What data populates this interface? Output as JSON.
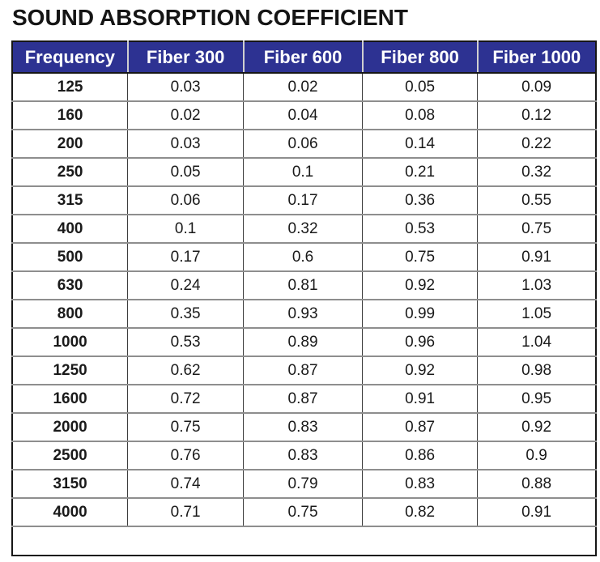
{
  "page_title": "SOUND ABSORPTION COEFFICIENT",
  "colors": {
    "header_bg": "#2d3292",
    "header_text": "#ffffff",
    "title_text": "#151515",
    "outer_border": "#161616",
    "grid_row_line": "#8e8e8e",
    "grid_col_line": "#3d3d3d"
  },
  "chart_data": {
    "type": "table",
    "title": "SOUND ABSORPTION COEFFICIENT",
    "columns": [
      "Frequency",
      "Fiber 300",
      "Fiber 600",
      "Fiber 800",
      "Fiber 1000"
    ],
    "rows": [
      [
        "125",
        "0.03",
        "0.02",
        "0.05",
        "0.09"
      ],
      [
        "160",
        "0.02",
        "0.04",
        "0.08",
        "0.12"
      ],
      [
        "200",
        "0.03",
        "0.06",
        "0.14",
        "0.22"
      ],
      [
        "250",
        "0.05",
        "0.1",
        "0.21",
        "0.32"
      ],
      [
        "315",
        "0.06",
        "0.17",
        "0.36",
        "0.55"
      ],
      [
        "400",
        "0.1",
        "0.32",
        "0.53",
        "0.75"
      ],
      [
        "500",
        "0.17",
        "0.6",
        "0.75",
        "0.91"
      ],
      [
        "630",
        "0.24",
        "0.81",
        "0.92",
        "1.03"
      ],
      [
        "800",
        "0.35",
        "0.93",
        "0.99",
        "1.05"
      ],
      [
        "1000",
        "0.53",
        "0.89",
        "0.96",
        "1.04"
      ],
      [
        "1250",
        "0.62",
        "0.87",
        "0.92",
        "0.98"
      ],
      [
        "1600",
        "0.72",
        "0.87",
        "0.91",
        "0.95"
      ],
      [
        "2000",
        "0.75",
        "0.83",
        "0.87",
        "0.92"
      ],
      [
        "2500",
        "0.76",
        "0.83",
        "0.86",
        "0.9"
      ],
      [
        "3150",
        "0.74",
        "0.79",
        "0.83",
        "0.88"
      ],
      [
        "4000",
        "0.71",
        "0.75",
        "0.82",
        "0.91"
      ]
    ],
    "has_trailing_empty_row": true,
    "layout": {
      "column_width_percents": [
        19.8,
        19.8,
        20.4,
        19.7,
        20.3
      ],
      "grid": true,
      "header_style": "solid-fill"
    }
  }
}
